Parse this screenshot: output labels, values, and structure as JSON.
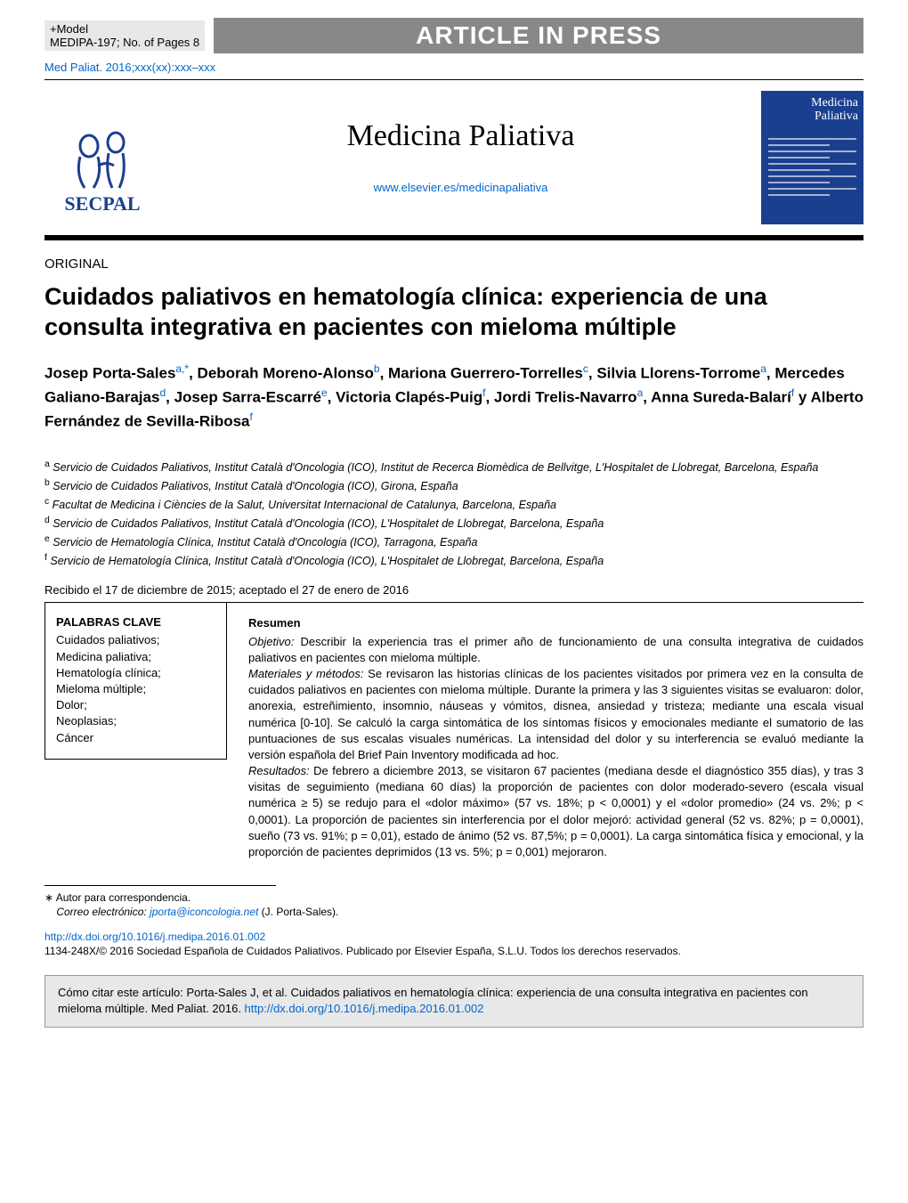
{
  "header": {
    "model_prefix": "+Model",
    "model_id": "MEDIPA-197;",
    "pages": "No. of Pages 8",
    "banner": "ARTICLE IN PRESS",
    "citation": "Med Paliat. 2016;xxx(xx):xxx–xxx"
  },
  "masthead": {
    "logo_text": "SECPAL",
    "journal_title": "Medicina Paliativa",
    "journal_url": "www.elsevier.es/medicinapaliativa",
    "cover_title": "Medicina Paliativa"
  },
  "article": {
    "section": "ORIGINAL",
    "title": "Cuidados paliativos en hematología clínica: experiencia de una consulta integrativa en pacientes con mieloma múltiple",
    "authors_html": "Josep Porta-Sales<sup>a,*</sup>, Deborah Moreno-Alonso<sup>b</sup>, Mariona Guerrero-Torrelles<sup>c</sup>, Silvia Llorens-Torrome<sup>a</sup>, Mercedes Galiano-Barajas<sup>d</sup>, Josep Sarra-Escarré<sup>e</sup>, Victoria Clapés-Puig<sup>f</sup>, Jordi Trelis-Navarro<sup>a</sup>, Anna Sureda-Balarí<sup>f</sup> y Alberto Fernández de Sevilla-Ribosa<sup>f</sup>"
  },
  "affiliations": {
    "a": "Servicio de Cuidados Paliativos, Institut Català d'Oncologia (ICO), Institut de Recerca Biomèdica de Bellvitge, L'Hospitalet de Llobregat, Barcelona, España",
    "b": "Servicio de Cuidados Paliativos, Institut Català d'Oncologia (ICO), Girona, España",
    "c": "Facultat de Medicina i Ciències de la Salut, Universitat Internacional de Catalunya, Barcelona, España",
    "d": "Servicio de Cuidados Paliativos, Institut Català d'Oncologia (ICO), L'Hospitalet de Llobregat, Barcelona, España",
    "e": "Servicio de Hematología Clínica, Institut Català d'Oncologia (ICO), Tarragona, España",
    "f": "Servicio de Hematología Clínica, Institut Català d'Oncologia (ICO), L'Hospitalet de Llobregat, Barcelona, España"
  },
  "dates": "Recibido el 17 de diciembre de 2015; aceptado el 27 de enero de 2016",
  "keywords": {
    "heading": "PALABRAS CLAVE",
    "items": [
      "Cuidados paliativos;",
      "Medicina paliativa;",
      "Hematología clínica;",
      "Mieloma múltiple;",
      "Dolor;",
      "Neoplasias;",
      "Cáncer"
    ]
  },
  "abstract": {
    "heading": "Resumen",
    "objective_label": "Objetivo:",
    "objective": " Describir la experiencia tras el primer año de funcionamiento de una consulta integrativa de cuidados paliativos en pacientes con mieloma múltiple.",
    "methods_label": "Materiales y métodos:",
    "methods": " Se revisaron las historias clínicas de los pacientes visitados por primera vez en la consulta de cuidados paliativos en pacientes con mieloma múltiple. Durante la primera y las 3 siguientes visitas se evaluaron: dolor, anorexia, estreñimiento, insomnio, náuseas y vómitos, disnea, ansiedad y tristeza; mediante una escala visual numérica [0-10]. Se calculó la carga sintomática de los síntomas físicos y emocionales mediante el sumatorio de las puntuaciones de sus escalas visuales numéricas. La intensidad del dolor y su interferencia se evaluó mediante la versión española del Brief Pain Inventory modificada ad hoc.",
    "results_label": "Resultados:",
    "results": " De febrero a diciembre 2013, se visitaron 67 pacientes (mediana desde el diagnóstico 355 días), y tras 3 visitas de seguimiento (mediana 60 días) la proporción de pacientes con dolor moderado-severo (escala visual numérica ≥ 5) se redujo para el «dolor máximo» (57 vs. 18%; p < 0,0001) y el «dolor promedio» (24 vs. 2%; p < 0,0001). La proporción de pacientes sin interferencia por el dolor mejoró: actividad general (52 vs. 82%; p = 0,0001), sueño (73 vs. 91%; p = 0,01), estado de ánimo (52 vs. 87,5%; p = 0,0001). La carga sintomática física y emocional, y la proporción de pacientes deprimidos (13 vs. 5%; p = 0,001) mejoraron."
  },
  "footnote": {
    "marker": "∗ Autor para correspondencia.",
    "email_label": "Correo electrónico:",
    "email": "jporta@iconcologia.net",
    "email_author": " (J. Porta-Sales)."
  },
  "doi": "http://dx.doi.org/10.1016/j.medipa.2016.01.002",
  "copyright": "1134-248X/© 2016 Sociedad Española de Cuidados Paliativos. Publicado por Elsevier España, S.L.U. Todos los derechos reservados.",
  "citebox": {
    "text": "Cómo citar este artículo: Porta-Sales J, et al. Cuidados paliativos en hematología clínica: experiencia de una consulta integrativa en pacientes con mieloma múltiple. Med Paliat. 2016. ",
    "doi": "http://dx.doi.org/10.1016/j.medipa.2016.01.002"
  },
  "colors": {
    "link": "#0066cc",
    "logo": "#1b3f8f",
    "banner_bg": "#888888",
    "citebox_bg": "#e8e8e8"
  }
}
